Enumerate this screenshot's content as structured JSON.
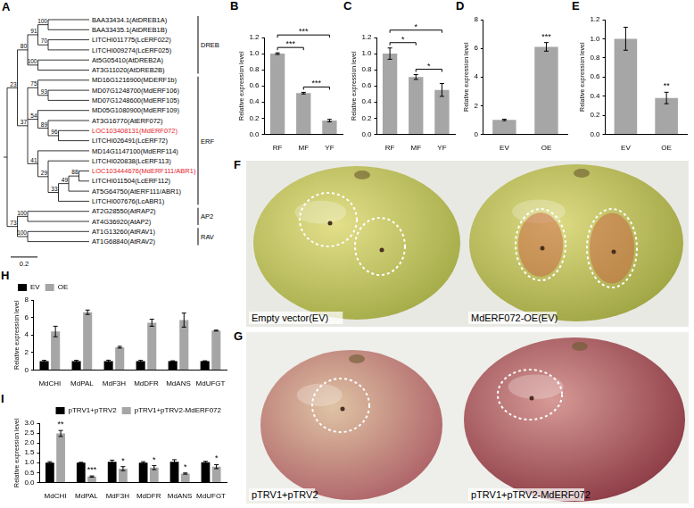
{
  "tree": {
    "panel": "A",
    "scale_bar": 0.2,
    "clades": [
      {
        "name": "DREB",
        "from": 0,
        "to": 5
      },
      {
        "name": "ERF",
        "from": 6,
        "to": 18
      },
      {
        "name": "AP2",
        "from": 19,
        "to": 20
      },
      {
        "name": "RAV",
        "from": 21,
        "to": 22
      }
    ],
    "root": {
      "children": [
        {
          "support": 23,
          "children": [
            {
              "support": 80,
              "children": [
                {
                  "support": 91,
                  "children": [
                    {
                      "support": 100,
                      "children": [
                        {
                          "label": "BAA33434.1(AtDREB1A)"
                        },
                        {
                          "label": "BAA33435.1(AtDREB1B)"
                        }
                      ]
                    },
                    {
                      "support": 70,
                      "children": [
                        {
                          "label": "LITCHI011775(LcERF022)"
                        },
                        {
                          "label": "LITCHI009274(LcERF025)"
                        }
                      ]
                    }
                  ]
                },
                {
                  "support": 100,
                  "children": [
                    {
                      "label": "At5G05410(AtDREB2A)"
                    },
                    {
                      "label": "AT3G11020(AtDREB2B)"
                    }
                  ]
                }
              ]
            },
            {
              "support": 37,
              "children": [
                {
                  "support": 75,
                  "children": [
                    {
                      "label": "MD16G1216900(MDERF1b)"
                    },
                    {
                      "support": 93,
                      "children": [
                        {
                          "label": "MD07G1248700(MdERF106)"
                        },
                        {
                          "label": "MD07G1248600(MdERF105)"
                        }
                      ]
                    }
                  ]
                },
                {
                  "support": 54,
                  "children": [
                    {
                      "label": "MD05G1080900(MdERF109)"
                    },
                    {
                      "support": 89,
                      "children": [
                        {
                          "label": "AT3G16770(AtERF072)"
                        },
                        {
                          "support": 96,
                          "children": [
                            {
                              "label": "LOC103408131(MdERF072)",
                              "color": "#e8171f"
                            },
                            {
                              "label": "LITCHI026491(LcERF72)"
                            }
                          ]
                        }
                      ]
                    }
                  ]
                },
                {
                  "support": 41,
                  "children": [
                    {
                      "label": "MD14G1147100(MdERF114)"
                    },
                    {
                      "support": 29,
                      "children": [
                        {
                          "label": "LITCHI020838(LcERF113)"
                        },
                        {
                          "support": 33,
                          "children": [
                            {
                              "support": 49,
                              "children": [
                                {
                                  "support": 88,
                                  "children": [
                                    {
                                      "label": "LOC103444676(MdERF111/ABR1)",
                                      "color": "#e8171f"
                                    },
                                    {
                                      "label": "LITCHI011504(LcERF112)"
                                    }
                                  ]
                                },
                                {
                                  "label": "AT5G64750(AtERF111/ABR1)"
                                }
                              ]
                            },
                            {
                              "label": "LITCHI007676(LcABR1)"
                            }
                          ]
                        }
                      ]
                    }
                  ]
                }
              ]
            }
          ]
        },
        {
          "support": 73,
          "children": [
            {
              "support": 100,
              "children": [
                {
                  "label": "AT2G28550(AtRAP2)"
                },
                {
                  "label": "AT4G36920(AtAP2)"
                }
              ]
            },
            {
              "support": 100,
              "children": [
                {
                  "label": "AT1G13260(AtRAV1)"
                },
                {
                  "label": "AT1G68840(AtRAV2)"
                }
              ]
            }
          ]
        }
      ]
    }
  },
  "chart_data": [
    {
      "panel": "B",
      "type": "bar",
      "y_label": "Relative expression level",
      "categories": [
        "RF",
        "MF",
        "YF"
      ],
      "values": [
        1.0,
        0.51,
        0.17
      ],
      "errors": [
        0.01,
        0.01,
        0.015
      ],
      "color": "#a6a6a6",
      "ylim": [
        0,
        1.2
      ],
      "yticks": [
        {
          "value": 0,
          "label": "0.0"
        },
        {
          "value": 0.2,
          "label": "0.2"
        },
        {
          "value": 0.4,
          "label": "0.4"
        },
        {
          "value": 0.6,
          "label": "0.6"
        },
        {
          "value": 0.8,
          "label": "0.8"
        },
        {
          "value": 1.0,
          "label": "1.0"
        },
        {
          "value": 1.2,
          "label": "1.2"
        }
      ],
      "grid": false,
      "annotations": [
        {
          "from": 0,
          "to": 1,
          "label": "***"
        },
        {
          "from": 0,
          "to": 2,
          "label": "***"
        },
        {
          "from": 1,
          "to": 2,
          "label": "***"
        }
      ]
    },
    {
      "panel": "C",
      "type": "bar",
      "y_label": "Relative expression level",
      "categories": [
        "RF",
        "MF",
        "YF"
      ],
      "values": [
        1.0,
        0.71,
        0.55
      ],
      "errors": [
        0.07,
        0.03,
        0.08
      ],
      "color": "#a6a6a6",
      "ylim": [
        0,
        1.2
      ],
      "yticks": [
        {
          "value": 0,
          "label": "0.0"
        },
        {
          "value": 0.2,
          "label": "0.2"
        },
        {
          "value": 0.4,
          "label": "0.4"
        },
        {
          "value": 0.6,
          "label": "0.6"
        },
        {
          "value": 0.8,
          "label": "0.8"
        },
        {
          "value": 1.0,
          "label": "1.0"
        },
        {
          "value": 1.2,
          "label": "1.2"
        }
      ],
      "grid": false,
      "annotations": [
        {
          "from": 0,
          "to": 1,
          "label": "*"
        },
        {
          "from": 0,
          "to": 2,
          "label": "*"
        },
        {
          "from": 1,
          "to": 2,
          "label": "*"
        }
      ]
    },
    {
      "panel": "D",
      "type": "bar",
      "y_label": "Relative expression level",
      "categories": [
        "EV",
        "OE"
      ],
      "values": [
        1.0,
        6.1
      ],
      "errors": [
        0.05,
        0.3
      ],
      "color": "#a6a6a6",
      "ylim": [
        0,
        8
      ],
      "yticks": [
        0,
        2,
        4,
        6,
        8
      ],
      "grid": false,
      "annotations": [
        {
          "index": 1,
          "label": "***"
        }
      ]
    },
    {
      "panel": "E",
      "type": "bar",
      "y_label": "Relative expression level",
      "categories": [
        "EV",
        "OE"
      ],
      "values": [
        1.0,
        0.38
      ],
      "errors": [
        0.12,
        0.06
      ],
      "color": "#a6a6a6",
      "ylim": [
        0,
        1.2
      ],
      "yticks": [
        {
          "value": 0,
          "label": "0.0"
        },
        {
          "value": 0.2,
          "label": "0.2"
        },
        {
          "value": 0.4,
          "label": "0.4"
        },
        {
          "value": 0.6,
          "label": "0.6"
        },
        {
          "value": 0.8,
          "label": "0.8"
        },
        {
          "value": 1.0,
          "label": "1.0"
        },
        {
          "value": 1.2,
          "label": "1.2"
        }
      ],
      "grid": false,
      "annotations": [
        {
          "index": 1,
          "label": "**"
        }
      ]
    },
    {
      "panel": "H",
      "type": "bar",
      "y_label": "Relative expression level",
      "categories": [
        "MdCHI",
        "MdPAL",
        "MdF3H",
        "MdDFR",
        "MdANS",
        "MdUFGT"
      ],
      "series": [
        {
          "name": "EV",
          "color": "#000000",
          "values": [
            1.0,
            1.0,
            1.0,
            1.0,
            1.0,
            1.0
          ],
          "errors": [
            0.1,
            0.1,
            0.12,
            0.1,
            0.05,
            0.05
          ]
        },
        {
          "name": "OE",
          "color": "#a6a6a6",
          "values": [
            4.4,
            6.6,
            2.6,
            5.4,
            5.7,
            4.5
          ],
          "errors": [
            0.6,
            0.25,
            0.1,
            0.4,
            0.8,
            0.05
          ]
        }
      ],
      "ylim": [
        0,
        8
      ],
      "yticks": [
        0,
        2,
        4,
        6,
        8
      ],
      "grid": false,
      "legend": "top-left"
    },
    {
      "panel": "I",
      "type": "bar",
      "y_label": "Relative expression level",
      "categories": [
        "MdCHI",
        "MdPAL",
        "MdF3H",
        "MdDFR",
        "MdANS",
        "MdUFGT"
      ],
      "series": [
        {
          "name": "pTRV1+pTRV2",
          "color": "#000000",
          "values": [
            1.0,
            1.0,
            1.05,
            1.0,
            1.05,
            1.02
          ],
          "errors": [
            0.05,
            0.02,
            0.08,
            0.05,
            0.1,
            0.05
          ]
        },
        {
          "name": "pTRV1+pTRV2-MdERF072",
          "color": "#a6a6a6",
          "values": [
            2.48,
            0.3,
            0.7,
            0.75,
            0.45,
            0.8
          ],
          "errors": [
            0.15,
            0.03,
            0.1,
            0.1,
            0.03,
            0.1
          ]
        }
      ],
      "ylim": [
        0,
        3
      ],
      "yticks": [
        {
          "value": 0,
          "label": "0.0"
        },
        {
          "value": 0.5,
          "label": "0.5"
        },
        {
          "value": 1.0,
          "label": "1.0"
        },
        {
          "value": 1.5,
          "label": "1.5"
        },
        {
          "value": 2.0,
          "label": "2.0"
        },
        {
          "value": 2.5,
          "label": "2.5"
        },
        {
          "value": 3.0,
          "label": "3.0"
        }
      ],
      "grid": false,
      "legend": "top-right",
      "annotations": [
        {
          "series": 1,
          "index": 0,
          "label": "**"
        },
        {
          "series": 1,
          "index": 1,
          "label": "***"
        },
        {
          "series": 1,
          "index": 2,
          "label": "*"
        },
        {
          "series": 1,
          "index": 3,
          "label": "*"
        },
        {
          "series": 1,
          "index": 4,
          "label": "*"
        },
        {
          "series": 1,
          "index": 5,
          "label": "*"
        }
      ]
    }
  ],
  "photos": [
    {
      "panel": "F",
      "labels": [
        "Empty vector(EV)",
        "MdERF072-OE(EV)"
      ]
    },
    {
      "panel": "G",
      "labels": [
        "pTRV1+pTRV2",
        "pTRV1+pTRV2-MdERF072"
      ]
    }
  ]
}
